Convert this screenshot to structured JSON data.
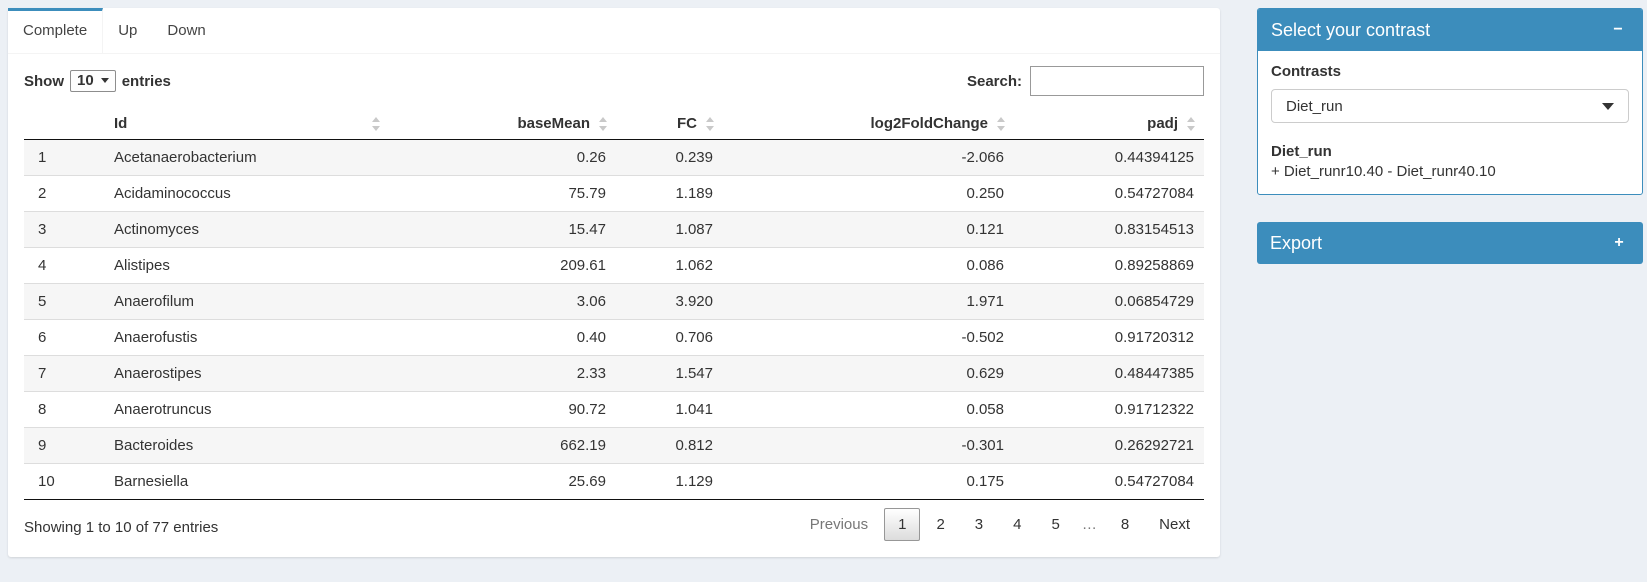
{
  "colors": {
    "accent": "#3c8dbc",
    "page_bg": "#ecf0f5"
  },
  "tabs": [
    {
      "label": "Complete",
      "active": true
    },
    {
      "label": "Up",
      "active": false
    },
    {
      "label": "Down",
      "active": false
    }
  ],
  "controls": {
    "show_label": "Show",
    "page_length": "10",
    "entries_label": "entries",
    "search_label": "Search:",
    "search_value": ""
  },
  "table": {
    "columns": {
      "index": "",
      "id": "Id",
      "base_mean": "baseMean",
      "fc": "FC",
      "log2fc": "log2FoldChange",
      "padj": "padj"
    },
    "rows": [
      {
        "index": "1",
        "id": "Acetanaerobacterium",
        "base_mean": "0.26",
        "fc": "0.239",
        "log2fc": "-2.066",
        "padj": "0.44394125"
      },
      {
        "index": "2",
        "id": "Acidaminococcus",
        "base_mean": "75.79",
        "fc": "1.189",
        "log2fc": "0.250",
        "padj": "0.54727084"
      },
      {
        "index": "3",
        "id": "Actinomyces",
        "base_mean": "15.47",
        "fc": "1.087",
        "log2fc": "0.121",
        "padj": "0.83154513"
      },
      {
        "index": "4",
        "id": "Alistipes",
        "base_mean": "209.61",
        "fc": "1.062",
        "log2fc": "0.086",
        "padj": "0.89258869"
      },
      {
        "index": "5",
        "id": "Anaerofilum",
        "base_mean": "3.06",
        "fc": "3.920",
        "log2fc": "1.971",
        "padj": "0.06854729"
      },
      {
        "index": "6",
        "id": "Anaerofustis",
        "base_mean": "0.40",
        "fc": "0.706",
        "log2fc": "-0.502",
        "padj": "0.91720312"
      },
      {
        "index": "7",
        "id": "Anaerostipes",
        "base_mean": "2.33",
        "fc": "1.547",
        "log2fc": "0.629",
        "padj": "0.48447385"
      },
      {
        "index": "8",
        "id": "Anaerotruncus",
        "base_mean": "90.72",
        "fc": "1.041",
        "log2fc": "0.058",
        "padj": "0.91712322"
      },
      {
        "index": "9",
        "id": "Bacteroides",
        "base_mean": "662.19",
        "fc": "0.812",
        "log2fc": "-0.301",
        "padj": "0.26292721"
      },
      {
        "index": "10",
        "id": "Barnesiella",
        "base_mean": "25.69",
        "fc": "1.129",
        "log2fc": "0.175",
        "padj": "0.54727084"
      }
    ]
  },
  "footer": {
    "info": "Showing 1 to 10 of 77 entries",
    "pagination": {
      "previous": "Previous",
      "pages": [
        "1",
        "2",
        "3",
        "4",
        "5"
      ],
      "ellipsis": "…",
      "last_page": "8",
      "next": "Next",
      "current_page": "1"
    }
  },
  "contrast_box": {
    "title": "Select your contrast",
    "collapse_icon": "−",
    "contrasts_label": "Contrasts",
    "selected_contrast": "Diet_run",
    "contrast_name": "Diet_run",
    "contrast_formula": "+ Diet_runr10.40 - Diet_runr40.10"
  },
  "export_box": {
    "title": "Export",
    "expand_icon": "+"
  }
}
